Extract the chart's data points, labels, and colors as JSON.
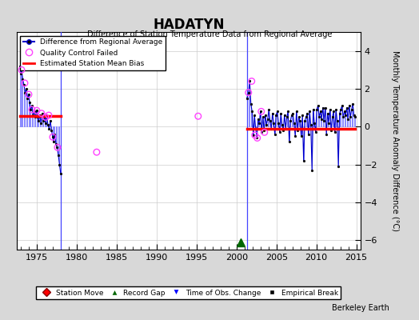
{
  "title": "HADATYN",
  "subtitle": "Difference of Station Temperature Data from Regional Average",
  "ylabel": "Monthly Temperature Anomaly Difference (°C)",
  "xlabel_credit": "Berkeley Earth",
  "xlim": [
    1972.5,
    2015.5
  ],
  "ylim": [
    -6.5,
    5.0
  ],
  "yticks": [
    -6,
    -4,
    -2,
    0,
    2,
    4
  ],
  "xticks": [
    1975,
    1980,
    1985,
    1990,
    1995,
    2000,
    2005,
    2010,
    2015
  ],
  "segment1_x_start": 1972.9,
  "segment1_x_end": 1978.0,
  "segment1_bias": 0.55,
  "segment2_x_start": 2001.3,
  "segment2_x_end": 2014.8,
  "segment2_bias": -0.12,
  "gap_marker_x": 2000.5,
  "gap_marker_y": -6.1,
  "vertical_line1_x": 1978.0,
  "vertical_line2_x": 2001.3,
  "qc_failed_points": [
    [
      1973.1,
      3.0
    ],
    [
      1973.5,
      2.3
    ],
    [
      1974.0,
      1.7
    ],
    [
      1974.4,
      0.9
    ],
    [
      1975.0,
      0.85
    ],
    [
      1975.6,
      0.7
    ],
    [
      1976.1,
      0.5
    ],
    [
      1976.5,
      0.6
    ],
    [
      1977.0,
      -0.55
    ],
    [
      1977.6,
      -1.1
    ],
    [
      1982.5,
      -1.35
    ],
    [
      1995.2,
      0.55
    ],
    [
      2001.5,
      1.8
    ],
    [
      2001.9,
      2.4
    ],
    [
      2002.3,
      -0.45
    ],
    [
      2002.6,
      -0.6
    ],
    [
      2003.1,
      0.8
    ],
    [
      2003.5,
      -0.3
    ]
  ],
  "segment1_data_x": [
    1972.9,
    1973.0,
    1973.1,
    1973.25,
    1973.4,
    1973.55,
    1973.7,
    1973.85,
    1974.0,
    1974.1,
    1974.25,
    1974.4,
    1974.55,
    1974.7,
    1974.85,
    1975.0,
    1975.1,
    1975.25,
    1975.4,
    1975.55,
    1975.7,
    1975.85,
    1976.0,
    1976.1,
    1976.25,
    1976.4,
    1976.55,
    1976.7,
    1976.85,
    1977.0,
    1977.1,
    1977.25,
    1977.4,
    1977.55,
    1977.7,
    1977.85,
    1978.0
  ],
  "segment1_data_y": [
    3.2,
    2.8,
    3.0,
    2.5,
    2.2,
    1.8,
    2.0,
    1.5,
    1.7,
    1.3,
    0.9,
    1.1,
    0.6,
    0.8,
    0.5,
    0.85,
    0.5,
    0.3,
    0.6,
    0.2,
    0.7,
    0.3,
    0.5,
    0.2,
    0.6,
    0.1,
    -0.1,
    0.3,
    -0.2,
    -0.55,
    -0.8,
    -0.4,
    -0.9,
    -1.1,
    -1.5,
    -2.0,
    -2.5
  ],
  "segment2_data_x": [
    2001.3,
    2001.5,
    2001.65,
    2001.8,
    2001.95,
    2002.1,
    2002.25,
    2002.4,
    2002.55,
    2002.7,
    2002.85,
    2003.0,
    2003.15,
    2003.3,
    2003.45,
    2003.6,
    2003.75,
    2003.9,
    2004.05,
    2004.2,
    2004.35,
    2004.5,
    2004.65,
    2004.8,
    2004.95,
    2005.1,
    2005.25,
    2005.4,
    2005.55,
    2005.7,
    2005.85,
    2006.0,
    2006.15,
    2006.3,
    2006.45,
    2006.6,
    2006.75,
    2006.9,
    2007.05,
    2007.2,
    2007.35,
    2007.5,
    2007.65,
    2007.8,
    2007.95,
    2008.1,
    2008.25,
    2008.4,
    2008.55,
    2008.7,
    2008.85,
    2009.0,
    2009.15,
    2009.3,
    2009.45,
    2009.6,
    2009.75,
    2009.9,
    2010.05,
    2010.2,
    2010.35,
    2010.5,
    2010.65,
    2010.8,
    2010.95,
    2011.1,
    2011.25,
    2011.4,
    2011.55,
    2011.7,
    2011.85,
    2012.0,
    2012.15,
    2012.3,
    2012.45,
    2012.6,
    2012.75,
    2012.9,
    2013.05,
    2013.2,
    2013.35,
    2013.5,
    2013.65,
    2013.8,
    2013.95,
    2014.1,
    2014.25,
    2014.4,
    2014.55,
    2014.7,
    2014.8
  ],
  "segment2_data_y": [
    1.5,
    1.8,
    2.4,
    1.2,
    0.8,
    -0.45,
    0.6,
    -0.1,
    -0.6,
    0.4,
    0.2,
    0.8,
    -0.3,
    0.5,
    -0.2,
    0.6,
    0.1,
    0.4,
    0.9,
    0.3,
    -0.1,
    0.7,
    0.2,
    -0.4,
    0.6,
    0.8,
    0.2,
    -0.3,
    0.7,
    0.1,
    -0.2,
    0.6,
    -0.1,
    0.5,
    0.8,
    -0.8,
    0.3,
    0.6,
    0.7,
    0.2,
    -0.5,
    0.8,
    -0.2,
    0.5,
    0.3,
    -0.5,
    0.6,
    -1.8,
    0.3,
    0.5,
    0.7,
    -0.4,
    0.8,
    0.1,
    -2.3,
    0.9,
    0.2,
    -0.3,
    0.9,
    1.1,
    0.5,
    0.8,
    0.4,
    1.0,
    0.3,
    1.0,
    -0.4,
    0.7,
    0.2,
    0.9,
    -0.2,
    0.5,
    0.8,
    -0.3,
    0.9,
    0.3,
    -2.1,
    0.7,
    0.9,
    1.1,
    0.5,
    0.8,
    0.6,
    1.0,
    0.4,
    1.1,
    0.5,
    0.9,
    1.2,
    0.6,
    0.5
  ],
  "bg_color": "#d8d8d8",
  "plot_bg_color": "#ffffff",
  "line_color": "#0000cc",
  "stem_color": "#8888ff",
  "bias_line_color": "#ff0000",
  "qc_color": "#ff44ff",
  "gap_color": "#006600",
  "vertical_line_color": "#4444ff"
}
